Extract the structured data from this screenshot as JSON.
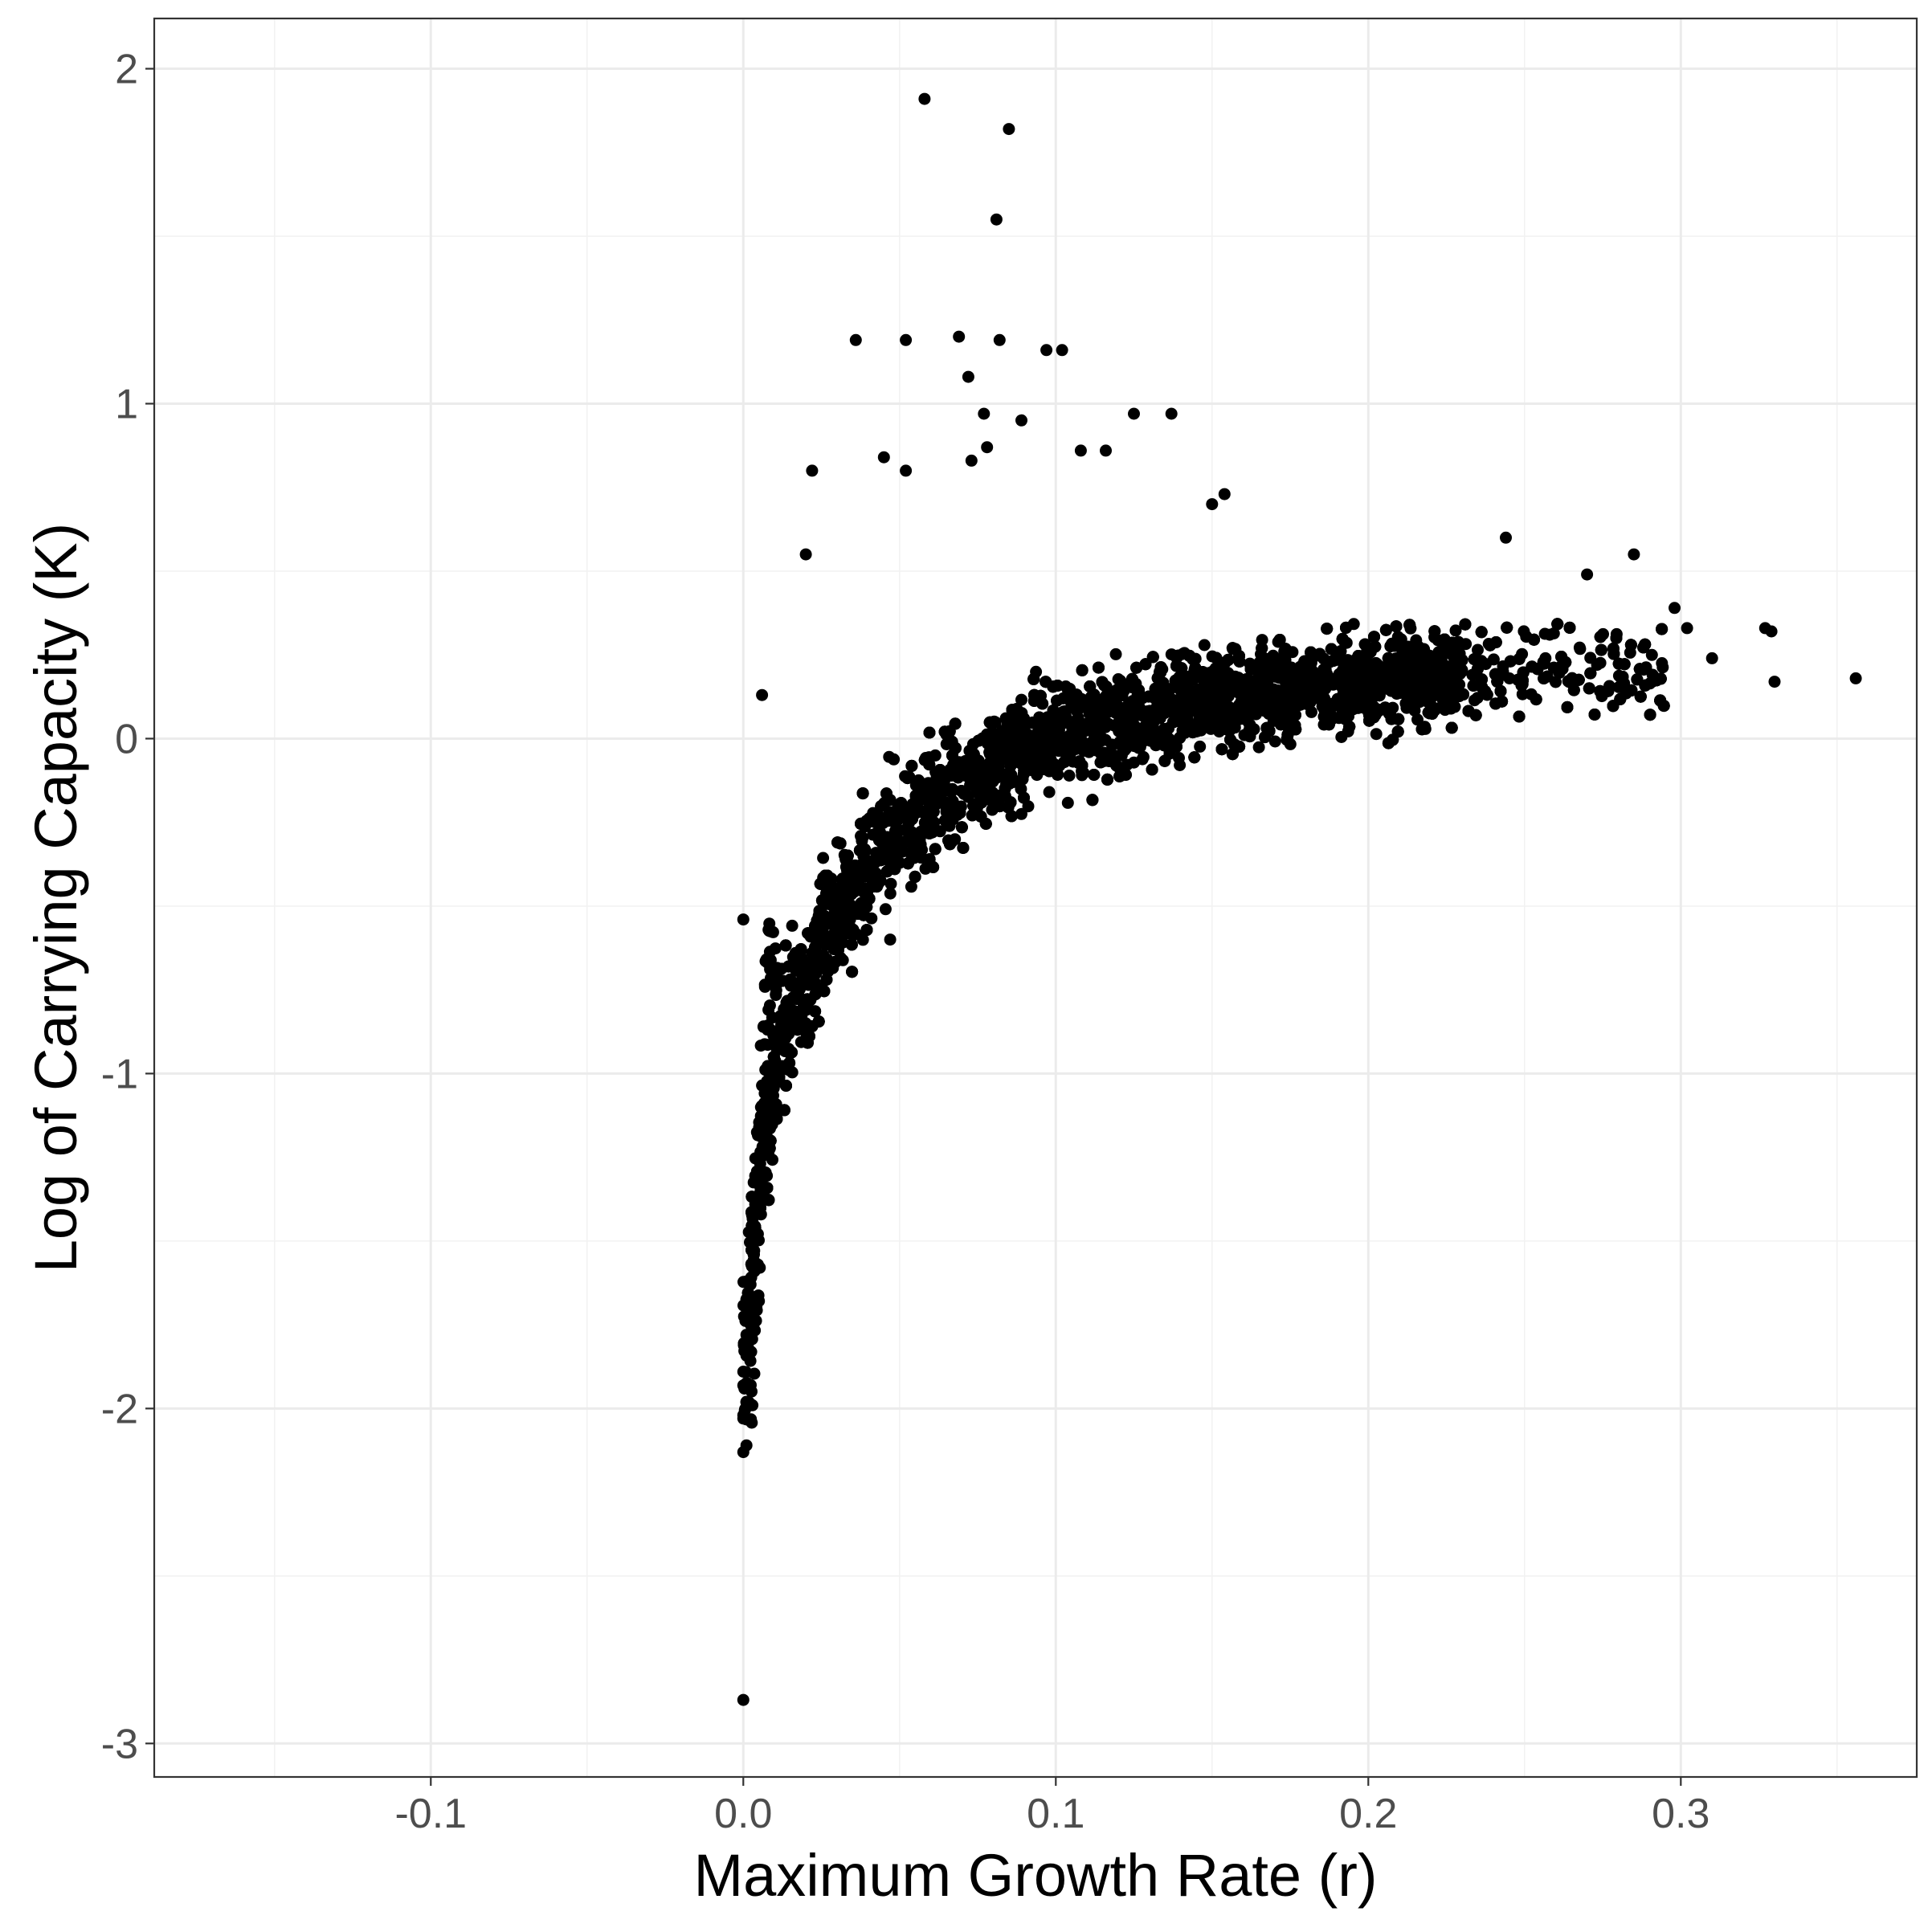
{
  "chart_data": {
    "type": "scatter",
    "title": "",
    "xlabel": "Maximum Growth Rate (r)",
    "ylabel": "Log of Carrying Capacity (K)",
    "xlim": [
      -0.1885,
      0.3755
    ],
    "ylim": [
      -3.1,
      2.15
    ],
    "x_ticks": [
      -0.1,
      0.0,
      0.1,
      0.2,
      0.3
    ],
    "x_tick_labels": [
      "-0.1",
      "0.0",
      "0.1",
      "0.2",
      "0.3"
    ],
    "y_ticks": [
      -3,
      -2,
      -1,
      0,
      1,
      2
    ],
    "y_tick_labels": [
      "-3",
      "-2",
      "-1",
      "0",
      "1",
      "2"
    ],
    "grid": true,
    "point_color": "#000000",
    "outliers": [
      {
        "x": 0.058,
        "y": 1.91
      },
      {
        "x": 0.085,
        "y": 1.82
      },
      {
        "x": 0.081,
        "y": 1.55
      },
      {
        "x": 0.036,
        "y": 1.19
      },
      {
        "x": 0.052,
        "y": 1.19
      },
      {
        "x": 0.069,
        "y": 1.2
      },
      {
        "x": 0.082,
        "y": 1.19
      },
      {
        "x": 0.097,
        "y": 1.16
      },
      {
        "x": 0.102,
        "y": 1.16
      },
      {
        "x": 0.072,
        "y": 1.08
      },
      {
        "x": 0.077,
        "y": 0.97
      },
      {
        "x": 0.125,
        "y": 0.97
      },
      {
        "x": 0.137,
        "y": 0.97
      },
      {
        "x": 0.089,
        "y": 0.95
      },
      {
        "x": 0.078,
        "y": 0.87
      },
      {
        "x": 0.045,
        "y": 0.84
      },
      {
        "x": 0.073,
        "y": 0.83
      },
      {
        "x": 0.022,
        "y": 0.8
      },
      {
        "x": 0.052,
        "y": 0.8
      },
      {
        "x": 0.108,
        "y": 0.86
      },
      {
        "x": 0.116,
        "y": 0.86
      },
      {
        "x": 0.154,
        "y": 0.73
      },
      {
        "x": 0.15,
        "y": 0.7
      },
      {
        "x": 0.02,
        "y": 0.55
      },
      {
        "x": 0.006,
        "y": 0.13
      },
      {
        "x": 0.244,
        "y": 0.6
      },
      {
        "x": 0.285,
        "y": 0.55
      },
      {
        "x": 0.27,
        "y": 0.49
      },
      {
        "x": 0.298,
        "y": 0.39
      },
      {
        "x": 0.302,
        "y": 0.33
      },
      {
        "x": 0.31,
        "y": 0.24
      },
      {
        "x": 0.327,
        "y": 0.33
      },
      {
        "x": 0.329,
        "y": 0.32
      },
      {
        "x": 0.33,
        "y": 0.17
      },
      {
        "x": 0.356,
        "y": 0.18
      },
      {
        "x": 0.0,
        "y": -2.87
      },
      {
        "x": 0.0,
        "y": -2.13
      },
      {
        "x": 0.001,
        "y": -2.11
      },
      {
        "x": 0.001,
        "y": -1.98
      },
      {
        "x": 0.0,
        "y": -1.89
      },
      {
        "x": 0.001,
        "y": -1.78
      },
      {
        "x": 0.001,
        "y": -1.69
      },
      {
        "x": 0.0,
        "y": -0.54
      },
      {
        "x": 0.047,
        "y": -0.6
      },
      {
        "x": 0.02,
        "y": -0.85
      }
    ],
    "cloud_description_params": {
      "n_points": 6500,
      "curve": "y = 0.24 - 0.35*(0.13-x)^2*... fitted saturating curve",
      "r_range": [
        0.0,
        0.29
      ]
    }
  }
}
